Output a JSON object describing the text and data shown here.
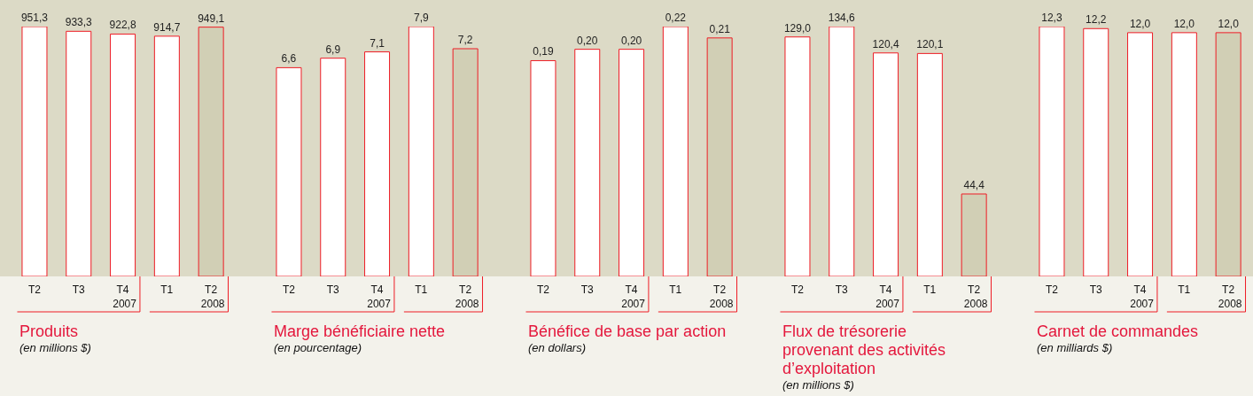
{
  "chart_data": [
    {
      "type": "bar",
      "title": "Produits",
      "subtitle": "(en millions $)",
      "categories": [
        "T2",
        "T3",
        "T4",
        "T1",
        "T2"
      ],
      "values": [
        951.3,
        933.3,
        922.8,
        914.7,
        949.1
      ],
      "value_labels": [
        "951,3",
        "933,3",
        "922,8",
        "914,7",
        "949,1"
      ],
      "colors": [
        "#ffffff",
        "#ffffff",
        "#ffffff",
        "#ffffff",
        "#d1cfb5"
      ],
      "annotations": [
        "2007",
        "2008"
      ],
      "tick_labels": "x"
    },
    {
      "type": "bar",
      "title": "Marge bénéficiaire nette",
      "subtitle": "(en pourcentage)",
      "categories": [
        "T2",
        "T3",
        "T4",
        "T1",
        "T2"
      ],
      "values": [
        6.6,
        6.9,
        7.1,
        7.9,
        7.2
      ],
      "value_labels": [
        "6,6",
        "6,9",
        "7,1",
        "7,9",
        "7,2"
      ],
      "colors": [
        "#ffffff",
        "#ffffff",
        "#ffffff",
        "#ffffff",
        "#d1cfb5"
      ],
      "annotations": [
        "2007",
        "2008"
      ],
      "tick_labels": "x"
    },
    {
      "type": "bar",
      "title": "Bénéfice de base par action",
      "subtitle": "(en dollars)",
      "categories": [
        "T2",
        "T3",
        "T4",
        "T1",
        "T2"
      ],
      "values": [
        0.19,
        0.2,
        0.2,
        0.22,
        0.21
      ],
      "value_labels": [
        "0,19",
        "0,20",
        "0,20",
        "0,22",
        "0,21"
      ],
      "colors": [
        "#ffffff",
        "#ffffff",
        "#ffffff",
        "#ffffff",
        "#d1cfb5"
      ],
      "annotations": [
        "2007",
        "2008"
      ],
      "tick_labels": "x"
    },
    {
      "type": "bar",
      "title": "Flux de trésorerie provenant des activités d’exploitation",
      "subtitle": "(en millions $)",
      "categories": [
        "T2",
        "T3",
        "T4",
        "T1",
        "T2"
      ],
      "values": [
        129.0,
        134.6,
        120.4,
        120.1,
        44.4
      ],
      "value_labels": [
        "129,0",
        "134,6",
        "120,4",
        "120,1",
        "44,4"
      ],
      "colors": [
        "#ffffff",
        "#ffffff",
        "#ffffff",
        "#ffffff",
        "#d1cfb5"
      ],
      "annotations": [
        "2007",
        "2008"
      ],
      "tick_labels": "x"
    },
    {
      "type": "bar",
      "title": "Carnet de commandes",
      "subtitle": "(en milliards $)",
      "categories": [
        "T2",
        "T3",
        "T4",
        "T1",
        "T2"
      ],
      "values": [
        12.3,
        12.2,
        12.0,
        12.0,
        12.0
      ],
      "value_labels": [
        "12,3",
        "12,2",
        "12,0",
        "12,0",
        "12,0"
      ],
      "colors": [
        "#ffffff",
        "#ffffff",
        "#ffffff",
        "#ffffff",
        "#d1cfb5"
      ],
      "annotations": [
        "2007",
        "2008"
      ],
      "tick_labels": "x"
    }
  ]
}
